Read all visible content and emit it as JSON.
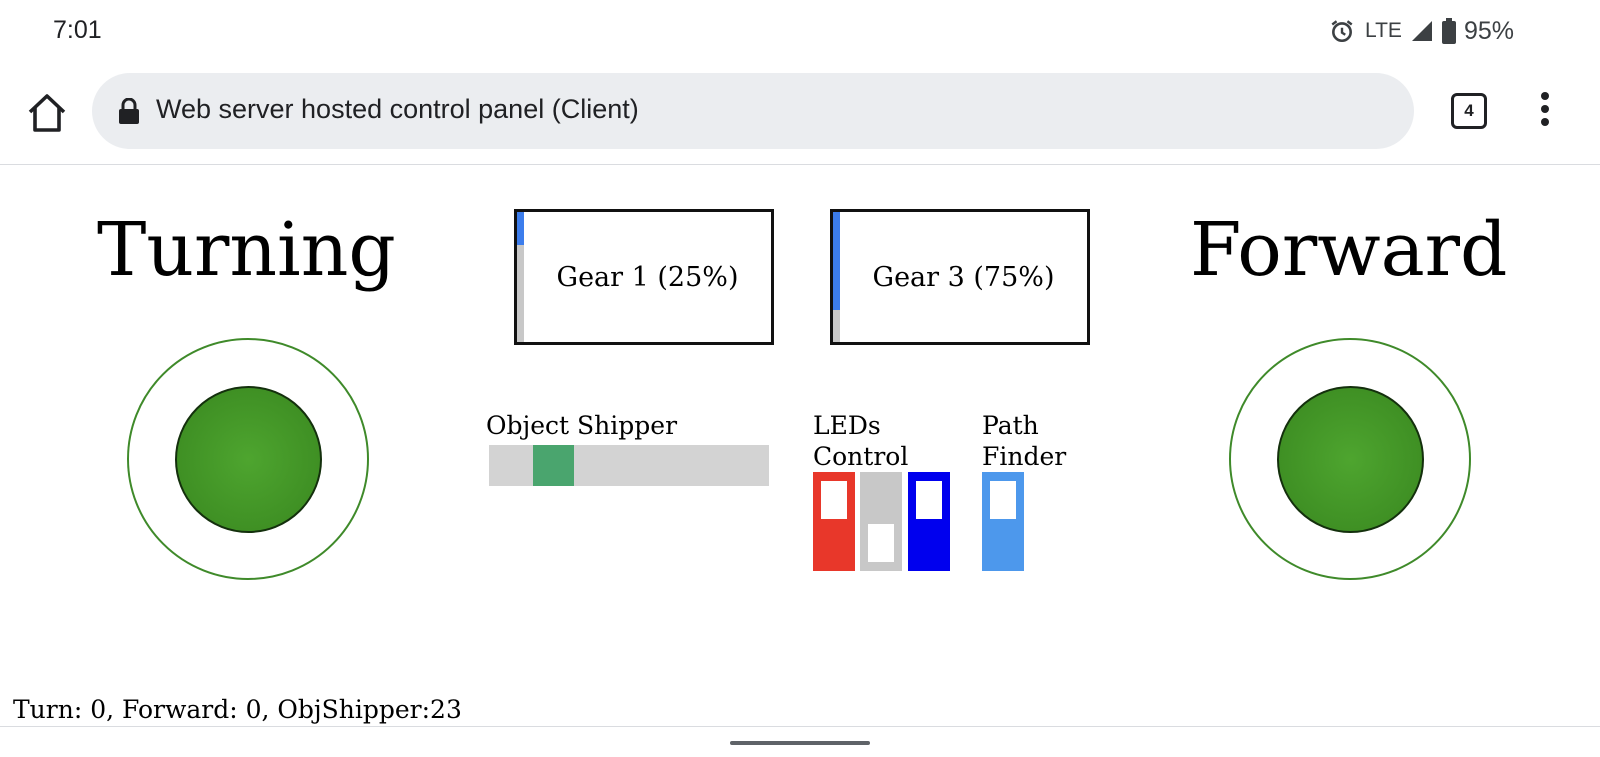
{
  "status_bar": {
    "time": "7:01",
    "network": "LTE",
    "battery": "95%",
    "icons": [
      "alarm-icon",
      "signal-icon",
      "battery-icon"
    ]
  },
  "browser": {
    "url_title": "Web server hosted control panel (Client)",
    "tab_count": "4",
    "icons": [
      "home-icon",
      "lock-icon",
      "tabs-icon",
      "menu-icon"
    ]
  },
  "controls": {
    "turning_label": "Turning",
    "forward_label": "Forward",
    "gear_left": {
      "label": "Gear 1 (25%)",
      "level": 0.25,
      "fill_color": "#3c7dec"
    },
    "gear_right": {
      "label": "Gear 3 (75%)",
      "level": 0.75,
      "fill_color": "#3c7dec"
    },
    "object_shipper": {
      "label": "Object Shipper",
      "value": 23,
      "min": 0,
      "max": 100
    },
    "leds": {
      "label_line1": "LEDs",
      "label_line2": "Control",
      "toggles": [
        {
          "color": "#e8372a",
          "state": "up"
        },
        {
          "color": "#c8c8c8",
          "state": "down"
        },
        {
          "color": "#0000ee",
          "state": "up"
        }
      ]
    },
    "path_finder": {
      "label_line1": "Path",
      "label_line2": "Finder",
      "color": "#4d98ec",
      "state": "up"
    }
  },
  "footer": {
    "status_text": "Turn: 0, Forward: 0, ObjShipper:23"
  }
}
